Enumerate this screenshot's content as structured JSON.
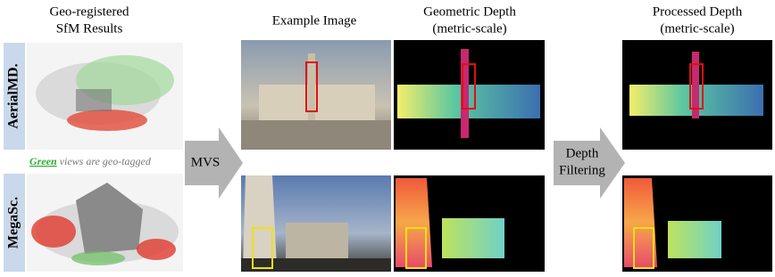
{
  "headers": {
    "sfm": [
      "Geo-registered",
      "SfM Results"
    ],
    "example": "Example Image",
    "geometric": [
      "Geometric Depth",
      "(metric-scale)"
    ],
    "processed": [
      "Processed Depth",
      "(metric-scale)"
    ]
  },
  "rows": [
    "AerialMD.",
    "MegaSc."
  ],
  "note": {
    "highlight": "Green",
    "rest": " views are geo-tagged"
  },
  "arrows": {
    "mvs": "MVS",
    "filtering": [
      "Depth",
      "Filtering"
    ]
  }
}
